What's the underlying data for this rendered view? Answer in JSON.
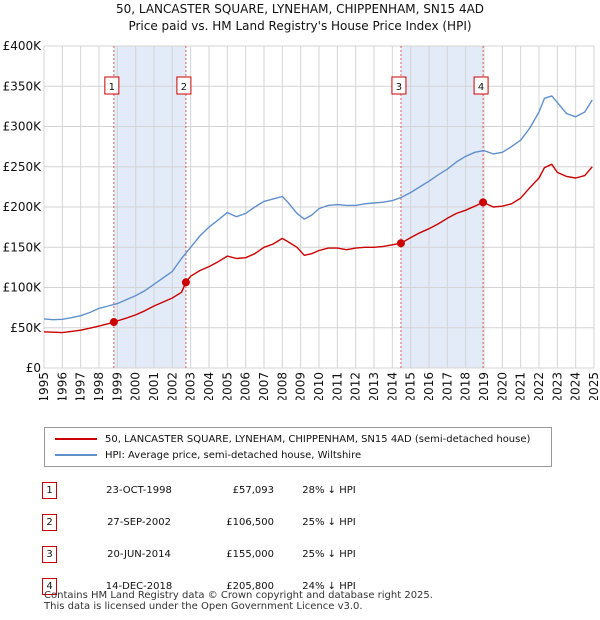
{
  "title": {
    "line1": "50, LANCASTER SQUARE, LYNEHAM, CHIPPENHAM, SN15 4AD",
    "line2": "Price paid vs. HM Land Registry's House Price Index (HPI)"
  },
  "chart_data": {
    "type": "line",
    "title": "50, LANCASTER SQUARE, LYNEHAM, CHIPPENHAM, SN15 4AD",
    "subtitle": "Price paid vs. HM Land Registry's House Price Index (HPI)",
    "xlabel": "",
    "ylabel": "",
    "xlim": [
      1995,
      2025
    ],
    "ylim": [
      0,
      400000
    ],
    "grid": true,
    "x_ticks": [
      "1995",
      "1996",
      "1997",
      "1998",
      "1999",
      "2000",
      "2001",
      "2002",
      "2003",
      "2004",
      "2005",
      "2006",
      "2007",
      "2008",
      "2009",
      "2010",
      "2011",
      "2012",
      "2013",
      "2014",
      "2015",
      "2016",
      "2017",
      "2018",
      "2019",
      "2020",
      "2021",
      "2022",
      "2023",
      "2024",
      "2025"
    ],
    "y_ticks": [
      {
        "value": 0,
        "label": "£0"
      },
      {
        "value": 50000,
        "label": "£50K"
      },
      {
        "value": 100000,
        "label": "£100K"
      },
      {
        "value": 150000,
        "label": "£150K"
      },
      {
        "value": 200000,
        "label": "£200K"
      },
      {
        "value": 250000,
        "label": "£250K"
      },
      {
        "value": 300000,
        "label": "£300K"
      },
      {
        "value": 350000,
        "label": "£350K"
      },
      {
        "value": 400000,
        "label": "£400K"
      }
    ],
    "series": [
      {
        "name": "50, LANCASTER SQUARE, LYNEHAM, CHIPPENHAM, SN15 4AD (semi-detached house)",
        "color": "#cc0000",
        "x": [
          1995.0,
          1995.5,
          1996.0,
          1996.5,
          1997.0,
          1997.5,
          1998.0,
          1998.5,
          1998.81,
          1999.5,
          2000.0,
          2000.5,
          2001.0,
          2001.5,
          2002.0,
          2002.5,
          2002.74,
          2003.0,
          2003.5,
          2004.0,
          2004.5,
          2005.0,
          2005.5,
          2006.0,
          2006.5,
          2007.0,
          2007.5,
          2008.0,
          2008.3,
          2008.8,
          2009.2,
          2009.6,
          2010.0,
          2010.5,
          2011.0,
          2011.5,
          2012.0,
          2012.5,
          2013.0,
          2013.5,
          2014.0,
          2014.47,
          2015.0,
          2015.5,
          2016.0,
          2016.5,
          2017.0,
          2017.5,
          2018.0,
          2018.5,
          2018.95,
          2019.5,
          2020.0,
          2020.5,
          2021.0,
          2021.5,
          2022.0,
          2022.3,
          2022.7,
          2023.0,
          2023.5,
          2024.0,
          2024.5,
          2024.9
        ],
        "values": [
          45000,
          44500,
          44000,
          45500,
          47000,
          49500,
          52000,
          55000,
          57093,
          62000,
          66000,
          71000,
          77000,
          82000,
          87000,
          94000,
          106500,
          114000,
          121000,
          126000,
          132000,
          139000,
          136000,
          137000,
          142000,
          150000,
          154000,
          161000,
          157000,
          150000,
          140000,
          142000,
          146000,
          149000,
          149000,
          147000,
          149000,
          150000,
          150000,
          151000,
          153000,
          155000,
          162000,
          168000,
          173000,
          179000,
          186000,
          192000,
          196000,
          201000,
          205800,
          200000,
          201000,
          204000,
          211000,
          224000,
          236000,
          249000,
          253000,
          243000,
          238000,
          236000,
          239000,
          250000
        ]
      },
      {
        "name": "HPI: Average price, semi-detached house, Wiltshire",
        "color": "#6090cc",
        "x": [
          1995.0,
          1995.5,
          1996.0,
          1996.5,
          1997.0,
          1997.5,
          1998.0,
          1998.5,
          1999.0,
          1999.5,
          2000.0,
          2000.5,
          2001.0,
          2001.5,
          2002.0,
          2002.5,
          2003.0,
          2003.5,
          2004.0,
          2004.5,
          2005.0,
          2005.5,
          2006.0,
          2006.5,
          2007.0,
          2007.5,
          2008.0,
          2008.3,
          2008.8,
          2009.2,
          2009.6,
          2010.0,
          2010.5,
          2011.0,
          2011.5,
          2012.0,
          2012.5,
          2013.0,
          2013.5,
          2014.0,
          2014.5,
          2015.0,
          2015.5,
          2016.0,
          2016.5,
          2017.0,
          2017.5,
          2018.0,
          2018.5,
          2019.0,
          2019.5,
          2020.0,
          2020.5,
          2021.0,
          2021.5,
          2022.0,
          2022.3,
          2022.7,
          2023.0,
          2023.5,
          2024.0,
          2024.5,
          2024.9
        ],
        "values": [
          61000,
          60000,
          60500,
          62500,
          65000,
          69000,
          74000,
          77000,
          80000,
          85000,
          90000,
          96000,
          104000,
          112000,
          120000,
          136000,
          150000,
          164000,
          175000,
          184000,
          193000,
          188000,
          192000,
          200000,
          207000,
          210000,
          213000,
          206000,
          192000,
          185000,
          190000,
          198000,
          202000,
          203000,
          202000,
          202000,
          204000,
          205000,
          206000,
          208000,
          212000,
          218000,
          225000,
          232000,
          240000,
          247000,
          256000,
          263000,
          268000,
          270000,
          266000,
          268000,
          275000,
          283000,
          298000,
          318000,
          335000,
          338000,
          330000,
          316000,
          312000,
          318000,
          333000
        ]
      }
    ],
    "sales": [
      {
        "id": "1",
        "x": 1998.81,
        "value": 57093,
        "date": "23-OCT-1998",
        "price": "£57,093",
        "hpi": "28% ↓ HPI"
      },
      {
        "id": "2",
        "x": 2002.74,
        "value": 106500,
        "date": "27-SEP-2002",
        "price": "£106,500",
        "hpi": "25% ↓ HPI"
      },
      {
        "id": "3",
        "x": 2014.47,
        "value": 155000,
        "date": "20-JUN-2014",
        "price": "£155,000",
        "hpi": "25% ↓ HPI"
      },
      {
        "id": "4",
        "x": 2018.95,
        "value": 205800,
        "date": "14-DEC-2018",
        "price": "£205,800",
        "hpi": "24% ↓ HPI"
      }
    ],
    "shaded_spans": [
      [
        1998.81,
        2002.74
      ],
      [
        2014.47,
        2018.95
      ]
    ],
    "colors": {
      "shade": "#e3ebf8",
      "grid": "#d4d4d4",
      "sale_marker": "#cc0000"
    }
  },
  "legend": {
    "property_label": "50, LANCASTER SQUARE, LYNEHAM, CHIPPENHAM, SN15 4AD (semi-detached house)",
    "hpi_label": "HPI: Average price, semi-detached house, Wiltshire"
  },
  "footer": {
    "line1": "Contains HM Land Registry data © Crown copyright and database right 2025.",
    "line2": "This data is licensed under the Open Government Licence v3.0."
  }
}
